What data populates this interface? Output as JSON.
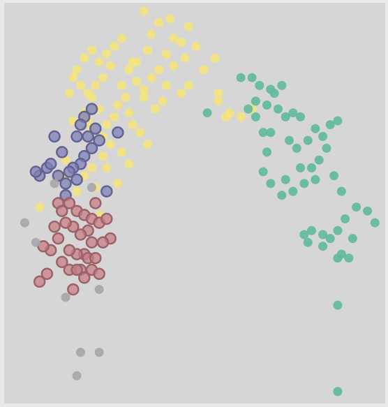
{
  "chart_data": {
    "type": "scatter",
    "title": "",
    "xlabel": "",
    "ylabel": "",
    "xlim": [
      0,
      100
    ],
    "ylim": [
      0,
      100
    ],
    "grid": false,
    "legend": "none",
    "colors": {
      "background": "#d6d6d6",
      "frame": "#e9e9e9"
    },
    "series": [
      {
        "color": "#f4e47c",
        "outline": false,
        "points": [
          [
            36,
            99
          ],
          [
            40,
            96
          ],
          [
            43,
            97
          ],
          [
            38,
            93
          ],
          [
            44,
            92
          ],
          [
            48,
            95
          ],
          [
            46,
            91
          ],
          [
            50,
            90
          ],
          [
            47,
            87
          ],
          [
            42,
            88
          ],
          [
            37,
            89
          ],
          [
            33,
            86
          ],
          [
            30,
            92
          ],
          [
            28,
            90
          ],
          [
            26,
            88
          ],
          [
            24,
            86
          ],
          [
            22,
            89
          ],
          [
            20,
            87
          ],
          [
            18,
            84
          ],
          [
            17,
            82
          ],
          [
            19,
            80
          ],
          [
            16,
            78
          ],
          [
            21,
            78
          ],
          [
            25,
            82
          ],
          [
            27,
            85
          ],
          [
            23,
            80
          ],
          [
            30,
            80
          ],
          [
            32,
            84
          ],
          [
            34,
            81
          ],
          [
            31,
            77
          ],
          [
            29,
            75
          ],
          [
            32,
            73
          ],
          [
            28,
            72
          ],
          [
            33,
            70
          ],
          [
            35,
            68
          ],
          [
            26,
            70
          ],
          [
            24,
            74
          ],
          [
            20,
            73
          ],
          [
            17,
            71
          ],
          [
            22,
            69
          ],
          [
            25,
            67
          ],
          [
            27,
            65
          ],
          [
            38,
            82
          ],
          [
            40,
            84
          ],
          [
            42,
            80
          ],
          [
            36,
            77
          ],
          [
            44,
            85
          ],
          [
            52,
            84
          ],
          [
            55,
            87
          ],
          [
            39,
            74
          ],
          [
            41,
            76
          ],
          [
            58,
            72
          ],
          [
            56,
            78
          ],
          [
            48,
            80
          ],
          [
            46,
            78
          ],
          [
            37,
            65
          ],
          [
            30,
            63
          ],
          [
            32,
            60
          ],
          [
            25,
            62
          ],
          [
            22,
            59
          ],
          [
            20,
            57
          ],
          [
            23,
            54
          ],
          [
            15,
            61
          ],
          [
            24,
            47
          ],
          [
            18,
            53
          ],
          [
            8,
            49
          ],
          [
            14,
            57
          ],
          [
            26,
            59
          ],
          [
            29,
            55
          ],
          [
            34,
            86
          ],
          [
            62,
            72
          ],
          [
            65,
            74
          ],
          [
            59,
            73
          ],
          [
            56,
            76
          ],
          [
            36,
            79
          ],
          [
            21,
            71
          ],
          [
            22,
            77
          ]
        ]
      },
      {
        "color": "#5fb99f",
        "outline": false,
        "points": [
          [
            62,
            82
          ],
          [
            65,
            82
          ],
          [
            67,
            80
          ],
          [
            70,
            79
          ],
          [
            73,
            80
          ],
          [
            66,
            76
          ],
          [
            69,
            75
          ],
          [
            72,
            74
          ],
          [
            71,
            78
          ],
          [
            74,
            72
          ],
          [
            76,
            73
          ],
          [
            78,
            72
          ],
          [
            66,
            72
          ],
          [
            64,
            74
          ],
          [
            68,
            68
          ],
          [
            70,
            68
          ],
          [
            75,
            66
          ],
          [
            77,
            64
          ],
          [
            80,
            66
          ],
          [
            82,
            69
          ],
          [
            84,
            67
          ],
          [
            86,
            70
          ],
          [
            88,
            71
          ],
          [
            85,
            64
          ],
          [
            83,
            61
          ],
          [
            81,
            59
          ],
          [
            78,
            59
          ],
          [
            79,
            55
          ],
          [
            82,
            56
          ],
          [
            76,
            53
          ],
          [
            74,
            56
          ],
          [
            69,
            63
          ],
          [
            68,
            58
          ],
          [
            70,
            55
          ],
          [
            73,
            52
          ],
          [
            87,
            57
          ],
          [
            89,
            53
          ],
          [
            93,
            49
          ],
          [
            96,
            48
          ],
          [
            98,
            45
          ],
          [
            90,
            46
          ],
          [
            88,
            43
          ],
          [
            84,
            42
          ],
          [
            81,
            43
          ],
          [
            86,
            41
          ],
          [
            84,
            39
          ],
          [
            79,
            42
          ],
          [
            80,
            40
          ],
          [
            92,
            41
          ],
          [
            88,
            36
          ],
          [
            91,
            36
          ],
          [
            89,
            37
          ],
          [
            53,
            73
          ],
          [
            88,
            24
          ],
          [
            88,
            2
          ]
        ]
      },
      {
        "color": "#7f7fb9",
        "outline": true,
        "points": [
          [
            20,
            72
          ],
          [
            22,
            74
          ],
          [
            19,
            70
          ],
          [
            23,
            69
          ],
          [
            21,
            67
          ],
          [
            18,
            67
          ],
          [
            24,
            66
          ],
          [
            22,
            64
          ],
          [
            20,
            62
          ],
          [
            19,
            60
          ],
          [
            17,
            59
          ],
          [
            14,
            63
          ],
          [
            12,
            67
          ],
          [
            10,
            59
          ],
          [
            11,
            60
          ],
          [
            8,
            57
          ],
          [
            7,
            58
          ],
          [
            16,
            58
          ],
          [
            13,
            57
          ],
          [
            15,
            55
          ],
          [
            18,
            56
          ],
          [
            29,
            68
          ],
          [
            26,
            53
          ],
          [
            15,
            52
          ]
        ]
      },
      {
        "color": "#c77f86",
        "outline": true,
        "points": [
          [
            13,
            50
          ],
          [
            16,
            50
          ],
          [
            14,
            48
          ],
          [
            18,
            48
          ],
          [
            20,
            47
          ],
          [
            23,
            50
          ],
          [
            22,
            46
          ],
          [
            24,
            45
          ],
          [
            21,
            43
          ],
          [
            19,
            42
          ],
          [
            17,
            44
          ],
          [
            15,
            45
          ],
          [
            12,
            44
          ],
          [
            13,
            41
          ],
          [
            26,
            46
          ],
          [
            27,
            41
          ],
          [
            25,
            40
          ],
          [
            22,
            40
          ],
          [
            20,
            37
          ],
          [
            18,
            37
          ],
          [
            16,
            38
          ],
          [
            11,
            38
          ],
          [
            9,
            39
          ],
          [
            14,
            35
          ],
          [
            16,
            33
          ],
          [
            19,
            33
          ],
          [
            21,
            36
          ],
          [
            23,
            36
          ],
          [
            22,
            33
          ],
          [
            24,
            32
          ],
          [
            20,
            31
          ],
          [
            18,
            33
          ],
          [
            10,
            32
          ],
          [
            8,
            30
          ],
          [
            17,
            28
          ]
        ]
      },
      {
        "color": "#a6a6a8",
        "outline": false,
        "points": [
          [
            4,
            45
          ],
          [
            12,
            55
          ],
          [
            15,
            26
          ],
          [
            24,
            28
          ],
          [
            24,
            12
          ],
          [
            19,
            12
          ],
          [
            18,
            6
          ],
          [
            22,
            54
          ],
          [
            7,
            40
          ]
        ]
      }
    ]
  }
}
